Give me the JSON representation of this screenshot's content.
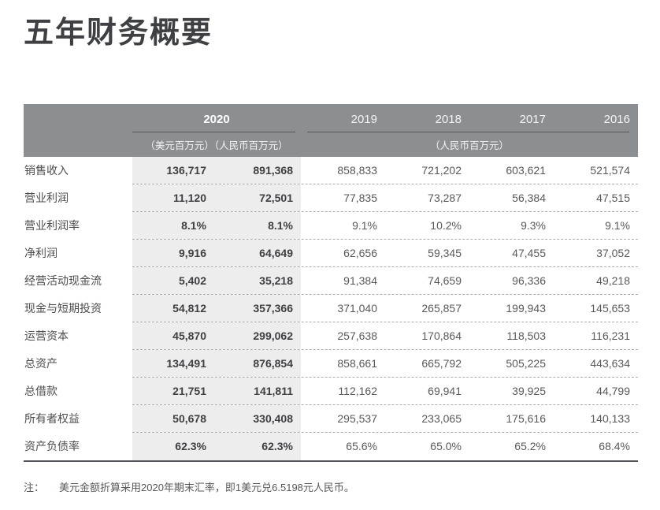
{
  "page": {
    "title": "五年财务概要"
  },
  "colors": {
    "header_bg": "#8C8F92",
    "header_line": "#55565B",
    "highlight_bg": "#EDEDEE",
    "dashed_separator": "#ABABAB",
    "bottom_line": "#54555A",
    "text_bold": "#3E3F42",
    "text_regular": "#58595B"
  },
  "table": {
    "header": {
      "year_2020": "2020",
      "years": [
        "2019",
        "2018",
        "2017",
        "2016"
      ],
      "unit_2020": "（美元百万元）（人民币百万元）",
      "unit_other": "（人民币百万元）"
    },
    "rows": [
      {
        "label": "销售收入",
        "usd": "136,717",
        "rmb": "891,368",
        "y2019": "858,833",
        "y2018": "721,202",
        "y2017": "603,621",
        "y2016": "521,574"
      },
      {
        "label": "营业利润",
        "usd": "11,120",
        "rmb": "72,501",
        "y2019": "77,835",
        "y2018": "73,287",
        "y2017": "56,384",
        "y2016": "47,515"
      },
      {
        "label": "营业利润率",
        "usd": "8.1%",
        "rmb": "8.1%",
        "y2019": "9.1%",
        "y2018": "10.2%",
        "y2017": "9.3%",
        "y2016": "9.1%"
      },
      {
        "label": "净利润",
        "usd": "9,916",
        "rmb": "64,649",
        "y2019": "62,656",
        "y2018": "59,345",
        "y2017": "47,455",
        "y2016": "37,052"
      },
      {
        "label": "经营活动现金流",
        "usd": "5,402",
        "rmb": "35,218",
        "y2019": "91,384",
        "y2018": "74,659",
        "y2017": "96,336",
        "y2016": "49,218"
      },
      {
        "label": "现金与短期投资",
        "usd": "54,812",
        "rmb": "357,366",
        "y2019": "371,040",
        "y2018": "265,857",
        "y2017": "199,943",
        "y2016": "145,653"
      },
      {
        "label": "运营资本",
        "usd": "45,870",
        "rmb": "299,062",
        "y2019": "257,638",
        "y2018": "170,864",
        "y2017": "118,503",
        "y2016": "116,231"
      },
      {
        "label": "总资产",
        "usd": "134,491",
        "rmb": "876,854",
        "y2019": "858,661",
        "y2018": "665,792",
        "y2017": "505,225",
        "y2016": "443,634"
      },
      {
        "label": "总借款",
        "usd": "21,751",
        "rmb": "141,811",
        "y2019": "112,162",
        "y2018": "69,941",
        "y2017": "39,925",
        "y2016": "44,799"
      },
      {
        "label": "所有者权益",
        "usd": "50,678",
        "rmb": "330,408",
        "y2019": "295,537",
        "y2018": "233,065",
        "y2017": "175,616",
        "y2016": "140,133"
      },
      {
        "label": "资产负债率",
        "usd": "62.3%",
        "rmb": "62.3%",
        "y2019": "65.6%",
        "y2018": "65.0%",
        "y2017": "65.2%",
        "y2016": "68.4%"
      }
    ]
  },
  "footnote": {
    "label": "注：",
    "text": "美元金额折算采用2020年期末汇率，即1美元兑6.5198元人民币。"
  }
}
